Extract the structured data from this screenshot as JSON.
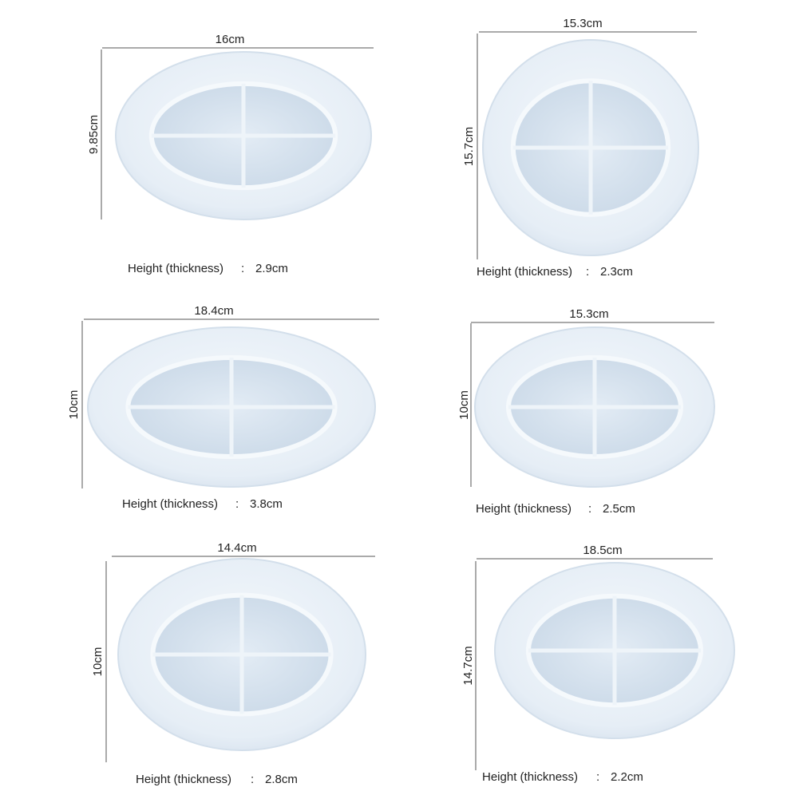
{
  "items": [
    {
      "width": "16cm",
      "height": "9.85cm",
      "thickness_label": "Height (thickness)",
      "separator": ":",
      "thickness": "2.9cm"
    },
    {
      "width": "15.3cm",
      "height": "15.7cm",
      "thickness_label": "Height (thickness)",
      "separator": ":",
      "thickness": "2.3cm"
    },
    {
      "width": "18.4cm",
      "height": "10cm",
      "thickness_label": "Height (thickness)",
      "separator": ":",
      "thickness": "3.8cm"
    },
    {
      "width": "15.3cm",
      "height": "10cm",
      "thickness_label": "Height (thickness)",
      "separator": ":",
      "thickness": "2.5cm"
    },
    {
      "width": "14.4cm",
      "height": "10cm",
      "thickness_label": "Height (thickness)",
      "separator": ":",
      "thickness": "2.8cm"
    },
    {
      "width": "18.5cm",
      "height": "14.7cm",
      "thickness_label": "Height (thickness)",
      "separator": ":",
      "thickness": "2.2cm"
    }
  ]
}
